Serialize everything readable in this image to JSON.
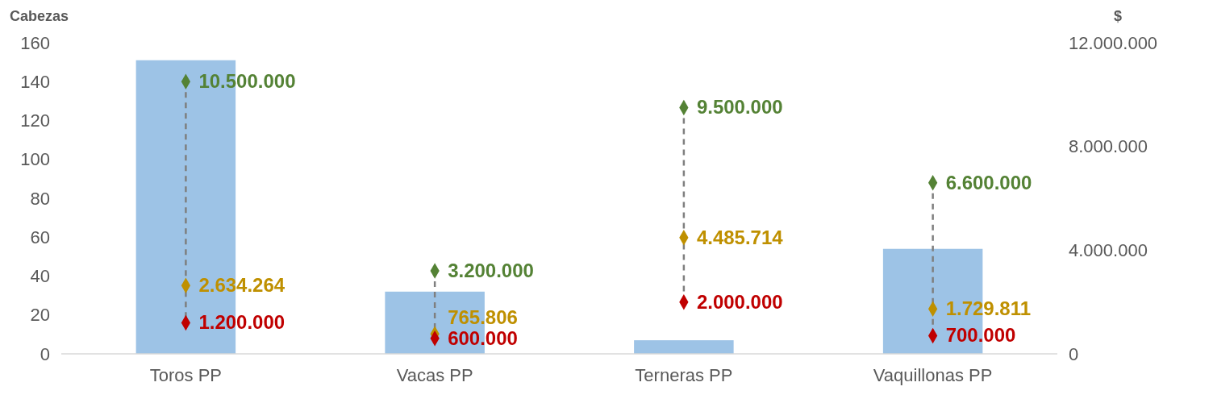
{
  "chart_data": {
    "type": "bar",
    "ylabel": "Cabezas",
    "y2label": "$",
    "categories": [
      "Toros PP",
      "Vacas PP",
      "Terneras PP",
      "Vaquillonas PP"
    ],
    "ylim": [
      0,
      160
    ],
    "yticks": [
      0,
      20,
      40,
      60,
      80,
      100,
      120,
      140,
      160
    ],
    "y2lim": [
      0,
      12000000
    ],
    "y2ticks": [
      {
        "value": 0,
        "label": "0"
      },
      {
        "value": 4000000,
        "label": "4.000.000"
      },
      {
        "value": 8000000,
        "label": "8.000.000"
      },
      {
        "value": 12000000,
        "label": "12.000.000"
      }
    ],
    "marker": "diamond",
    "line_style": "dashed",
    "series": [
      {
        "color": "#9dc3e6",
        "values": [
          151,
          32,
          7,
          54
        ]
      },
      {
        "type": "scatter",
        "axis": "y2",
        "color": "#548235",
        "values": [
          10500000,
          3200000,
          9500000,
          6600000
        ],
        "value_labels": [
          "10.500.000",
          "3.200.000",
          "9.500.000",
          "6.600.000"
        ]
      },
      {
        "type": "scatter",
        "axis": "y2",
        "color": "#bf9000",
        "values": [
          2634264,
          765806,
          4485714,
          1729811
        ],
        "value_labels": [
          "2.634.264",
          "765.806",
          "4.485.714",
          "1.729.811"
        ]
      },
      {
        "type": "scatter",
        "axis": "y2",
        "color": "#c00000",
        "values": [
          1200000,
          600000,
          2000000,
          700000
        ],
        "value_labels": [
          "1.200.000",
          "600.000",
          "2.000.000",
          "700.000"
        ]
      }
    ]
  }
}
